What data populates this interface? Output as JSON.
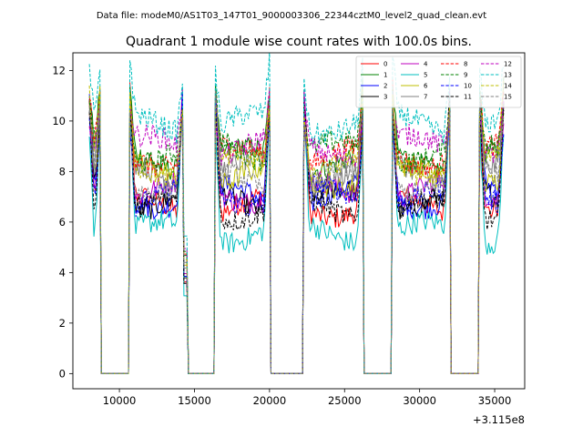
{
  "suptitle": "Data file: modeM0/AS1T03_147T01_9000003306_22344cztM0_level2_quad_clean.evt",
  "chart_data": {
    "type": "line",
    "title": "Quadrant 1 module wise count rates with 100.0s bins.",
    "xlabel": "",
    "ylabel": "",
    "x_offset_label": "+3.115e8",
    "x_offset": 311500000,
    "xlim": [
      6900,
      37000
    ],
    "ylim": [
      -0.6,
      12.7
    ],
    "xticks": [
      10000,
      15000,
      20000,
      25000,
      30000,
      35000
    ],
    "xtick_labels": [
      "10000",
      "15000",
      "20000",
      "25000",
      "30000",
      "35000"
    ],
    "yticks": [
      0,
      2,
      4,
      6,
      8,
      10,
      12
    ],
    "ytick_labels": [
      "0",
      "2",
      "4",
      "6",
      "8",
      "10",
      "12"
    ],
    "grid": false,
    "legend_position": "top-right",
    "legend_columns": 4,
    "bin_size_s": 100,
    "active_intervals": [
      [
        8000,
        8700
      ],
      [
        10700,
        14200
      ],
      [
        14300,
        14500
      ],
      [
        16400,
        20000
      ],
      [
        22300,
        26200
      ],
      [
        28200,
        32000
      ],
      [
        34000,
        35600
      ]
    ],
    "gap_value": 0,
    "series": [
      {
        "name": "0",
        "color": "#ff0000",
        "dash": "solid",
        "level": 6.6,
        "peak": 10.9
      },
      {
        "name": "1",
        "color": "#008000",
        "dash": "solid",
        "level": 8.5,
        "peak": 11.0
      },
      {
        "name": "2",
        "color": "#0000ff",
        "dash": "solid",
        "level": 7.0,
        "peak": 10.7
      },
      {
        "name": "3",
        "color": "#000000",
        "dash": "solid",
        "level": 6.9,
        "peak": 10.5
      },
      {
        "name": "4",
        "color": "#bf00bf",
        "dash": "solid",
        "level": 7.2,
        "peak": 10.6
      },
      {
        "name": "5",
        "color": "#00bfbf",
        "dash": "solid",
        "level": 5.6,
        "peak": 10.2
      },
      {
        "name": "6",
        "color": "#bfbf00",
        "dash": "solid",
        "level": 7.8,
        "peak": 10.6
      },
      {
        "name": "7",
        "color": "#808080",
        "dash": "solid",
        "level": 8.0,
        "peak": 10.5
      },
      {
        "name": "8",
        "color": "#ff0000",
        "dash": "dashed",
        "level": 8.6,
        "peak": 10.6
      },
      {
        "name": "9",
        "color": "#008000",
        "dash": "dashed",
        "level": 8.8,
        "peak": 10.7
      },
      {
        "name": "10",
        "color": "#0000ff",
        "dash": "dashed",
        "level": 7.0,
        "peak": 10.3
      },
      {
        "name": "11",
        "color": "#000000",
        "dash": "dashed",
        "level": 6.5,
        "peak": 10.6
      },
      {
        "name": "12",
        "color": "#bf00bf",
        "dash": "dashed",
        "level": 9.0,
        "peak": 10.6
      },
      {
        "name": "13",
        "color": "#00bfbf",
        "dash": "dashed",
        "level": 9.9,
        "peak": 12.1
      },
      {
        "name": "14",
        "color": "#bfbf00",
        "dash": "dashed",
        "level": 8.2,
        "peak": 10.7
      },
      {
        "name": "15",
        "color": "#808080",
        "dash": "dashed",
        "level": 7.6,
        "peak": 10.4
      }
    ]
  }
}
